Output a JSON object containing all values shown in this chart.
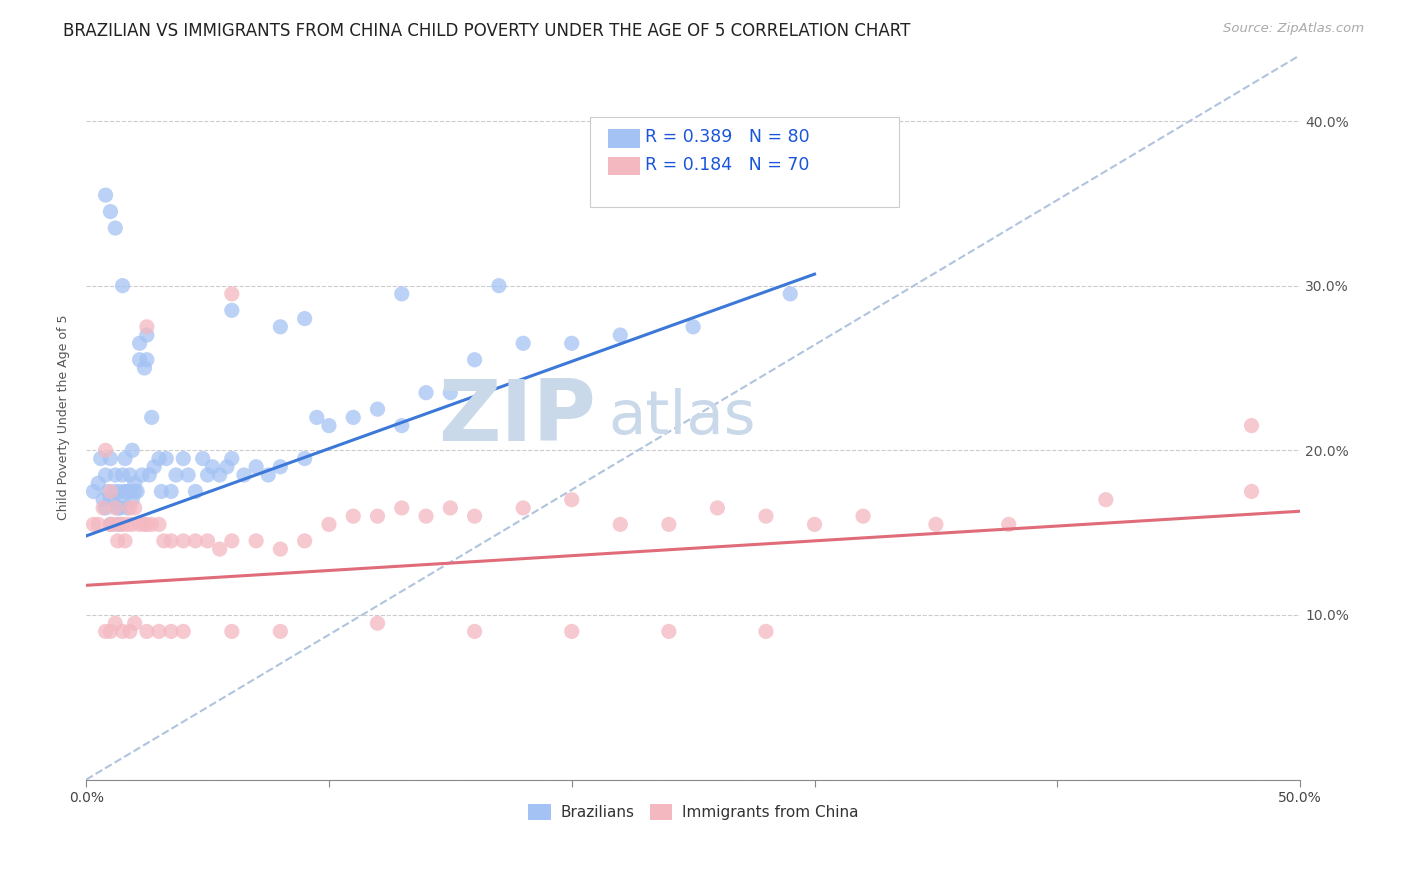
{
  "title": "BRAZILIAN VS IMMIGRANTS FROM CHINA CHILD POVERTY UNDER THE AGE OF 5 CORRELATION CHART",
  "source": "Source: ZipAtlas.com",
  "ylabel": "Child Poverty Under the Age of 5",
  "xlim": [
    0.0,
    0.5
  ],
  "ylim": [
    0.0,
    0.44
  ],
  "xticks": [
    0.0,
    0.1,
    0.2,
    0.3,
    0.4,
    0.5
  ],
  "yticks": [
    0.0,
    0.1,
    0.2,
    0.3,
    0.4
  ],
  "xticklabels_outer": [
    "0.0%",
    "",
    "",
    "",
    "",
    "50.0%"
  ],
  "yticklabels_right": [
    "",
    "10.0%",
    "20.0%",
    "30.0%",
    "40.0%"
  ],
  "brazil_R": "0.389",
  "brazil_N": "80",
  "china_R": "0.184",
  "china_N": "70",
  "brazil_color": "#a4c2f4",
  "china_color": "#f4b8c1",
  "brazil_line_color": "#3c78d8",
  "china_line_color": "#e06c7a",
  "dashed_line_color": "#b0c4de",
  "background_color": "#ffffff",
  "watermark_ZIP": "ZIP",
  "watermark_atlas": "atlas",
  "watermark_color": "#c9d9ea",
  "title_fontsize": 12,
  "source_fontsize": 9.5,
  "axis_label_fontsize": 9,
  "tick_fontsize": 10,
  "legend_color": "#1a56db",
  "brazil_line_intercept": 0.148,
  "brazil_line_slope": 0.53,
  "china_line_intercept": 0.118,
  "china_line_slope": 0.09,
  "brazil_x": [
    0.003,
    0.005,
    0.006,
    0.007,
    0.008,
    0.008,
    0.009,
    0.01,
    0.01,
    0.01,
    0.011,
    0.012,
    0.012,
    0.013,
    0.013,
    0.014,
    0.014,
    0.015,
    0.015,
    0.016,
    0.016,
    0.017,
    0.017,
    0.018,
    0.018,
    0.019,
    0.019,
    0.02,
    0.02,
    0.021,
    0.022,
    0.022,
    0.023,
    0.024,
    0.025,
    0.025,
    0.026,
    0.027,
    0.028,
    0.03,
    0.031,
    0.033,
    0.035,
    0.037,
    0.04,
    0.042,
    0.045,
    0.048,
    0.05,
    0.052,
    0.055,
    0.058,
    0.06,
    0.065,
    0.07,
    0.075,
    0.08,
    0.09,
    0.095,
    0.1,
    0.11,
    0.12,
    0.13,
    0.14,
    0.15,
    0.16,
    0.18,
    0.2,
    0.22,
    0.25,
    0.008,
    0.01,
    0.012,
    0.015,
    0.06,
    0.08,
    0.09,
    0.13,
    0.17,
    0.29
  ],
  "brazil_y": [
    0.175,
    0.18,
    0.195,
    0.17,
    0.185,
    0.165,
    0.175,
    0.155,
    0.17,
    0.195,
    0.17,
    0.175,
    0.185,
    0.155,
    0.165,
    0.175,
    0.165,
    0.17,
    0.185,
    0.175,
    0.195,
    0.165,
    0.175,
    0.175,
    0.185,
    0.17,
    0.2,
    0.175,
    0.18,
    0.175,
    0.255,
    0.265,
    0.185,
    0.25,
    0.255,
    0.27,
    0.185,
    0.22,
    0.19,
    0.195,
    0.175,
    0.195,
    0.175,
    0.185,
    0.195,
    0.185,
    0.175,
    0.195,
    0.185,
    0.19,
    0.185,
    0.19,
    0.195,
    0.185,
    0.19,
    0.185,
    0.19,
    0.195,
    0.22,
    0.215,
    0.22,
    0.225,
    0.215,
    0.235,
    0.235,
    0.255,
    0.265,
    0.265,
    0.27,
    0.275,
    0.355,
    0.345,
    0.335,
    0.3,
    0.285,
    0.275,
    0.28,
    0.295,
    0.3,
    0.295
  ],
  "china_x": [
    0.003,
    0.005,
    0.007,
    0.008,
    0.01,
    0.01,
    0.011,
    0.012,
    0.013,
    0.014,
    0.015,
    0.016,
    0.017,
    0.018,
    0.019,
    0.02,
    0.022,
    0.024,
    0.025,
    0.027,
    0.03,
    0.032,
    0.035,
    0.04,
    0.045,
    0.05,
    0.055,
    0.06,
    0.07,
    0.08,
    0.09,
    0.1,
    0.11,
    0.12,
    0.13,
    0.14,
    0.15,
    0.16,
    0.18,
    0.2,
    0.22,
    0.24,
    0.26,
    0.28,
    0.3,
    0.32,
    0.35,
    0.38,
    0.42,
    0.48,
    0.008,
    0.01,
    0.012,
    0.015,
    0.018,
    0.02,
    0.025,
    0.03,
    0.035,
    0.04,
    0.06,
    0.08,
    0.12,
    0.16,
    0.2,
    0.24,
    0.28,
    0.48,
    0.025,
    0.06
  ],
  "china_y": [
    0.155,
    0.155,
    0.165,
    0.2,
    0.155,
    0.175,
    0.155,
    0.165,
    0.145,
    0.155,
    0.155,
    0.145,
    0.155,
    0.165,
    0.155,
    0.165,
    0.155,
    0.155,
    0.155,
    0.155,
    0.155,
    0.145,
    0.145,
    0.145,
    0.145,
    0.145,
    0.14,
    0.145,
    0.145,
    0.14,
    0.145,
    0.155,
    0.16,
    0.16,
    0.165,
    0.16,
    0.165,
    0.16,
    0.165,
    0.17,
    0.155,
    0.155,
    0.165,
    0.16,
    0.155,
    0.16,
    0.155,
    0.155,
    0.17,
    0.175,
    0.09,
    0.09,
    0.095,
    0.09,
    0.09,
    0.095,
    0.09,
    0.09,
    0.09,
    0.09,
    0.09,
    0.09,
    0.095,
    0.09,
    0.09,
    0.09,
    0.09,
    0.215,
    0.275,
    0.295
  ]
}
